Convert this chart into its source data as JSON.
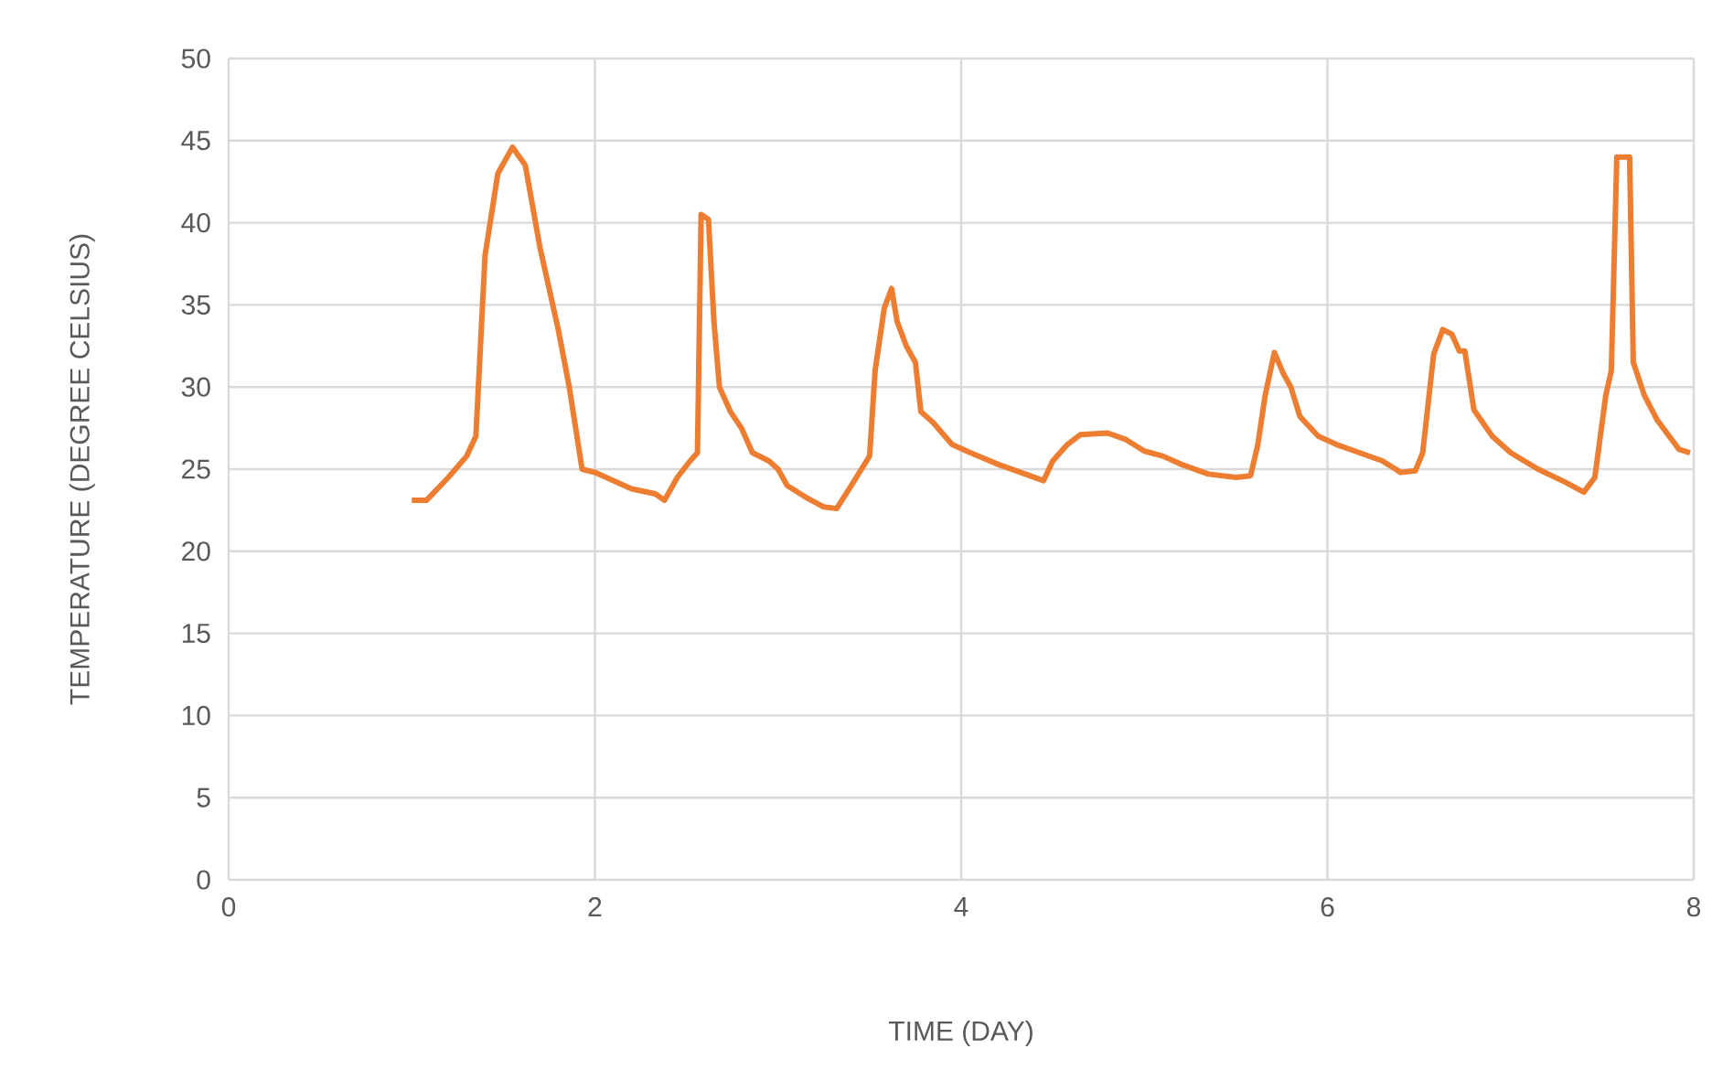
{
  "chart_data": {
    "type": "line",
    "xlabel": "TIME (DAY)",
    "ylabel": "TEMPERATURE (DEGREE CELSIUS)",
    "xlim": [
      0,
      8
    ],
    "xticks": [
      0,
      2,
      4,
      6,
      8
    ],
    "ylim": [
      0,
      50
    ],
    "yticks": [
      0,
      5,
      10,
      15,
      20,
      25,
      30,
      35,
      40,
      45,
      50
    ],
    "grid": true,
    "marker": "none",
    "line_style": "solid",
    "series": [
      {
        "color": "#ed7d31",
        "x": [
          1.0,
          1.08,
          1.2,
          1.3,
          1.35,
          1.4,
          1.47,
          1.55,
          1.62,
          1.7,
          1.8,
          1.86,
          1.93,
          2.0,
          2.1,
          2.2,
          2.33,
          2.38,
          2.45,
          2.52,
          2.56,
          2.58,
          2.62,
          2.65,
          2.68,
          2.74,
          2.8,
          2.86,
          2.95,
          3.0,
          3.05,
          3.15,
          3.25,
          3.32,
          3.4,
          3.5,
          3.53,
          3.58,
          3.62,
          3.65,
          3.7,
          3.75,
          3.78,
          3.85,
          3.95,
          4.05,
          4.2,
          4.35,
          4.45,
          4.5,
          4.58,
          4.65,
          4.8,
          4.9,
          5.0,
          5.1,
          5.2,
          5.35,
          5.5,
          5.58,
          5.62,
          5.66,
          5.71,
          5.76,
          5.8,
          5.85,
          5.95,
          6.05,
          6.15,
          6.3,
          6.4,
          6.48,
          6.52,
          6.58,
          6.63,
          6.68,
          6.72,
          6.75,
          6.8,
          6.9,
          7.0,
          7.15,
          7.3,
          7.4,
          7.46,
          7.52,
          7.55,
          7.58,
          7.65,
          7.67,
          7.73,
          7.8,
          7.92,
          7.98
        ],
        "values": [
          23.1,
          23.1,
          24.5,
          25.8,
          27,
          38,
          43,
          44.6,
          43.5,
          38.5,
          33.5,
          30,
          25,
          24.8,
          24.3,
          23.8,
          23.5,
          23.1,
          24.5,
          25.5,
          26,
          40.5,
          40.2,
          34,
          30,
          28.5,
          27.5,
          26,
          25.5,
          25,
          24,
          23.3,
          22.7,
          22.6,
          24,
          25.8,
          31,
          34.8,
          36,
          34,
          32.5,
          31.5,
          28.5,
          27.8,
          26.5,
          26,
          25.3,
          24.7,
          24.3,
          25.5,
          26.5,
          27.1,
          27.2,
          26.8,
          26.1,
          25.8,
          25.3,
          24.7,
          24.5,
          24.6,
          26.5,
          29.5,
          32.1,
          30.8,
          30,
          28.2,
          27,
          26.5,
          26.1,
          25.5,
          24.8,
          24.9,
          26,
          32,
          33.5,
          33.2,
          32.2,
          32.2,
          28.6,
          27,
          26,
          25,
          24.2,
          23.6,
          24.5,
          29.5,
          31,
          44,
          44,
          31.5,
          29.5,
          28,
          26.2,
          26
        ]
      }
    ]
  }
}
